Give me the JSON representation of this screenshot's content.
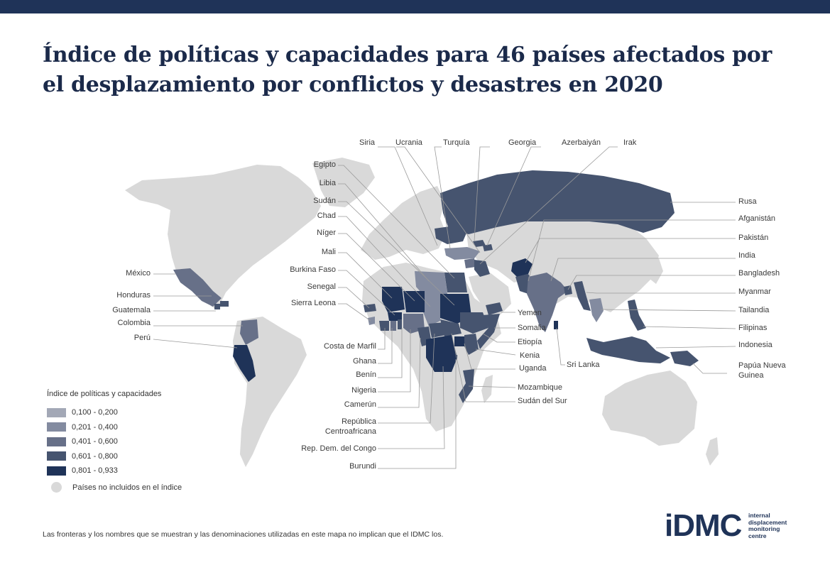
{
  "title": "Índice de políticas y capacidades para 46 países afectados por el desplazamiento por conflictos y desastres en 2020",
  "colors": {
    "bar": "#1f3358",
    "land": "#d9d9d9",
    "c1": "#a3a8b6",
    "c2": "#838ba0",
    "c3": "#677088",
    "c4": "#46546f",
    "c5": "#1f3358"
  },
  "labels": {
    "siria": "Siria",
    "ucrania": "Ucrania",
    "turquia": "Turquía",
    "georgia": "Georgia",
    "azerbaiyan": "Azerbaiyán",
    "irak": "Irak",
    "egipto": "Egipto",
    "libia": "Libia",
    "sudan": "Sudán",
    "chad": "Chad",
    "niger": "Níger",
    "mali": "Mali",
    "burkina": "Burkina Faso",
    "senegal": "Senegal",
    "sierra": "Sierra Leona",
    "mexico": "México",
    "honduras": "Honduras",
    "guatemala": "Guatemala",
    "colombia": "Colombia",
    "peru": "Perú",
    "costa": "Costa de Marfil",
    "ghana": "Ghana",
    "benin": "Benín",
    "nigeria": "Nigeria",
    "camerun": "Camerún",
    "rca1": "República",
    "rca2": "Centroafricana",
    "rdc": "Rep. Dem. del Congo",
    "burundi": "Burundi",
    "rusa": "Rusa",
    "afganistan": "Afganistán",
    "pakistan": "Pakistán",
    "india": "India",
    "bangladesh": "Bangladesh",
    "myanmar": "Myanmar",
    "tailandia": "Tailandia",
    "filipinas": "Filipinas",
    "indonesia": "Indonesia",
    "papua1": "Papúa Nueva",
    "papua2": "Guinea",
    "yemen": "Yemen",
    "somalia": "Somalia",
    "etiopia": "Etiopía",
    "kenia": "Kenia",
    "uganda": "Uganda",
    "srilanka": "Sri Lanka",
    "mozambique": "Mozambique",
    "sudansur": "Sudán del Sur"
  },
  "legend": {
    "title": "Índice de políticas y capacidades",
    "items": [
      {
        "label": "0,100 - 0,200",
        "color": "#a3a8b6"
      },
      {
        "label": "0,201 - 0,400",
        "color": "#838ba0"
      },
      {
        "label": "0,401 - 0,600",
        "color": "#677088"
      },
      {
        "label": "0,601 - 0,800",
        "color": "#46546f"
      },
      {
        "label": "0,801 - 0,933",
        "color": "#1f3358"
      }
    ],
    "excluded": "Países no incluidos en el índice"
  },
  "disclaimer": "Las fronteras y los nombres que se muestran y las denominaciones utilizadas en este mapa no implican que el IDMC los.",
  "logo": {
    "mark": "iDMC",
    "line1": "internal",
    "line2": "displacement",
    "line3": "monitoring",
    "line4": "centre"
  }
}
